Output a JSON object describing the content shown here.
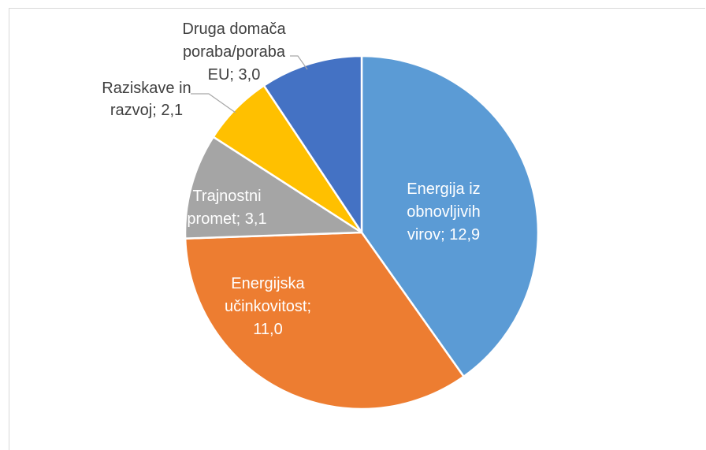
{
  "chart_data": {
    "type": "pie",
    "title": "",
    "slices": [
      {
        "label": "Energija iz obnovljivih virov",
        "value": 12.9,
        "color": "#5B9BD5",
        "text_lines": [
          "Energija iz",
          "obnovljivih",
          "virov; 12,9"
        ],
        "text_color": "#ffffff"
      },
      {
        "label": "Energijska učinkovitost",
        "value": 11.0,
        "color": "#ED7D31",
        "text_lines": [
          "Energijska",
          "učinkovitost;",
          "11,0"
        ],
        "text_color": "#ffffff"
      },
      {
        "label": "Trajnostni promet",
        "value": 3.1,
        "color": "#A5A5A5",
        "text_lines": [
          "Trajnostni",
          "promet; 3,1"
        ],
        "text_color": "#ffffff"
      },
      {
        "label": "Raziskave in razvoj",
        "value": 2.1,
        "color": "#FFC000",
        "text_lines": [
          "Raziskave in",
          "razvoj; 2,1"
        ],
        "text_color": "#404040"
      },
      {
        "label": "Druga domača poraba/poraba EU",
        "value": 3.0,
        "color": "#4472C4",
        "text_lines": [
          "Druga domača",
          "poraba/poraba",
          "EU; 3,0"
        ],
        "text_color": "#404040"
      }
    ],
    "start_angle_deg": 0,
    "direction": "clockwise",
    "legend": "none",
    "label_style": "category; value"
  }
}
